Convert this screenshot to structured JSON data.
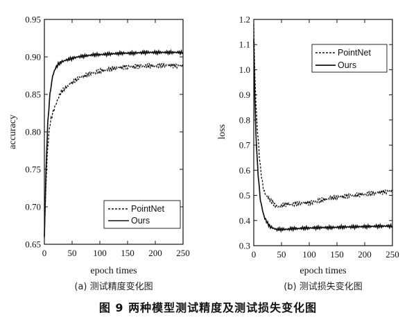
{
  "figure": {
    "title": "图 9   两种模型测试精度及测试损失变化图"
  },
  "chart_data": [
    {
      "type": "line",
      "caption": "(a) 测试精度变化图",
      "xlabel": "epoch times",
      "ylabel": "accuracy",
      "xlim": [
        0,
        250
      ],
      "ylim": [
        0.65,
        0.95
      ],
      "xticks": [
        0,
        50,
        100,
        150,
        200,
        250
      ],
      "yticks": [
        0.65,
        0.7,
        0.75,
        0.8,
        0.85,
        0.9,
        0.95
      ],
      "legend_position": "bottom-right",
      "series": [
        {
          "name": "PointNet",
          "style": "dashed",
          "x": [
            0,
            3,
            6,
            10,
            15,
            20,
            25,
            30,
            40,
            50,
            60,
            70,
            80,
            90,
            100,
            120,
            140,
            160,
            180,
            200,
            220,
            240,
            250
          ],
          "y": [
            0.66,
            0.73,
            0.78,
            0.81,
            0.825,
            0.835,
            0.845,
            0.853,
            0.86,
            0.866,
            0.871,
            0.874,
            0.877,
            0.879,
            0.881,
            0.884,
            0.886,
            0.887,
            0.888,
            0.888,
            0.889,
            0.888,
            0.888
          ]
        },
        {
          "name": "Ours",
          "style": "solid",
          "x": [
            0,
            3,
            6,
            10,
            15,
            20,
            25,
            30,
            40,
            50,
            60,
            70,
            80,
            90,
            100,
            120,
            140,
            160,
            180,
            200,
            220,
            240,
            250
          ],
          "y": [
            0.66,
            0.75,
            0.81,
            0.85,
            0.875,
            0.885,
            0.89,
            0.893,
            0.896,
            0.898,
            0.9,
            0.901,
            0.902,
            0.903,
            0.903,
            0.904,
            0.905,
            0.905,
            0.906,
            0.906,
            0.906,
            0.906,
            0.906
          ]
        }
      ]
    },
    {
      "type": "line",
      "caption": "(b) 测试损失变化图",
      "xlabel": "epoch times",
      "ylabel": "loss",
      "xlim": [
        0,
        250
      ],
      "ylim": [
        0.3,
        1.2
      ],
      "xticks": [
        0,
        50,
        100,
        150,
        200,
        250
      ],
      "yticks": [
        0.3,
        0.4,
        0.5,
        0.6,
        0.7,
        0.8,
        0.9,
        1.0,
        1.1,
        1.2
      ],
      "legend_position": "top-right",
      "series": [
        {
          "name": "PointNet",
          "style": "dashed",
          "x": [
            0,
            2,
            4,
            6,
            8,
            10,
            12,
            15,
            18,
            22,
            26,
            30,
            35,
            40,
            45,
            50,
            60,
            70,
            80,
            90,
            100,
            120,
            140,
            160,
            180,
            200,
            220,
            240,
            250
          ],
          "y": [
            1.18,
            0.98,
            0.86,
            0.78,
            0.72,
            0.66,
            0.61,
            0.56,
            0.52,
            0.5,
            0.49,
            0.48,
            0.47,
            0.455,
            0.455,
            0.46,
            0.465,
            0.465,
            0.468,
            0.47,
            0.47,
            0.48,
            0.49,
            0.495,
            0.5,
            0.505,
            0.51,
            0.515,
            0.518
          ]
        },
        {
          "name": "Ours",
          "style": "solid",
          "x": [
            0,
            2,
            4,
            6,
            8,
            10,
            12,
            15,
            18,
            22,
            26,
            30,
            35,
            40,
            45,
            50,
            60,
            70,
            80,
            90,
            100,
            120,
            140,
            160,
            180,
            200,
            220,
            240,
            250
          ],
          "y": [
            1.12,
            0.88,
            0.74,
            0.65,
            0.58,
            0.53,
            0.48,
            0.45,
            0.42,
            0.4,
            0.385,
            0.375,
            0.37,
            0.365,
            0.365,
            0.365,
            0.365,
            0.368,
            0.368,
            0.37,
            0.37,
            0.372,
            0.372,
            0.374,
            0.375,
            0.376,
            0.377,
            0.378,
            0.378
          ]
        }
      ]
    }
  ]
}
